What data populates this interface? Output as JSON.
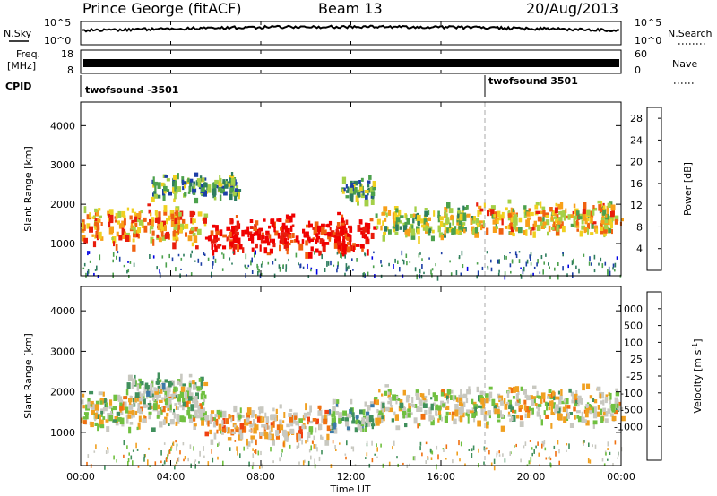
{
  "header": {
    "station": "Prince George (fitACF)",
    "beam": "Beam 13",
    "date": "20/Aug/2013"
  },
  "top_panels": {
    "nsky_label": "N.Sky",
    "nsky_ticks": [
      "10^5",
      "10^0"
    ],
    "nsearch_label": "N.Search",
    "nsearch_ticks": [
      "10^5",
      "10^0"
    ],
    "freq_label": "Freq.",
    "freq_unit": "[MHz]",
    "freq_ticks": [
      "18",
      "8"
    ],
    "nave_label": "Nave",
    "nave_ticks": [
      "60",
      "0"
    ],
    "cpid_label": "CPID",
    "cpid_segments": [
      {
        "label": "twofsound -3501",
        "start_hour": 0
      },
      {
        "label": "twofsound 3501",
        "start_hour": 18
      }
    ]
  },
  "chart_data": [
    {
      "type": "heatmap",
      "title": "",
      "xlabel": "Time UT",
      "ylabel": "Slant Range [km]",
      "xlim": [
        0,
        24
      ],
      "ylim": [
        180,
        4600
      ],
      "x_ticks": [
        "00:00",
        "04:00",
        "08:00",
        "12:00",
        "16:00",
        "20:00",
        "00:00"
      ],
      "y_ticks": [
        1000,
        2000,
        3000,
        4000
      ],
      "colorbar": {
        "label": "Power [dB]",
        "range": [
          0,
          30
        ],
        "ticks": [
          4,
          8,
          12,
          16,
          20,
          24,
          28
        ],
        "colors": [
          "#0000e6",
          "#1c3ea6",
          "#2e7d5e",
          "#4ca14c",
          "#a4d048",
          "#f0d020",
          "#f8a018",
          "#f06010",
          "#e81c0c",
          "#f00000"
        ]
      },
      "bands": [
        {
          "t0": 0.0,
          "t1": 5.5,
          "r_center": 1500,
          "r_width": 700,
          "level": 20
        },
        {
          "t0": 5.5,
          "t1": 13.0,
          "r_center": 1250,
          "r_width": 700,
          "level": 28
        },
        {
          "t0": 13.0,
          "t1": 17.5,
          "r_center": 1600,
          "r_width": 600,
          "level": 14
        },
        {
          "t0": 17.5,
          "t1": 24.0,
          "r_center": 1650,
          "r_width": 600,
          "level": 18
        },
        {
          "t0": 3.0,
          "t1": 7.0,
          "r_center": 2500,
          "r_width": 500,
          "level": 10
        },
        {
          "t0": 11.5,
          "t1": 13.0,
          "r_center": 2400,
          "r_width": 500,
          "level": 10
        }
      ]
    },
    {
      "type": "heatmap",
      "title": "",
      "xlabel": "Time UT",
      "ylabel": "Slant Range [km]",
      "xlim": [
        0,
        24
      ],
      "ylim": [
        180,
        4600
      ],
      "x_ticks": [
        "00:00",
        "04:00",
        "08:00",
        "12:00",
        "16:00",
        "20:00",
        "00:00"
      ],
      "y_ticks": [
        1000,
        2000,
        3000,
        4000
      ],
      "colorbar": {
        "label": "Velocity [m s^-1]",
        "range": [
          -1000,
          1000
        ],
        "ticks": [
          "1000",
          "500",
          "100",
          "25",
          "-25",
          "-100",
          "-500",
          "-1000"
        ],
        "colors": [
          "#2040c0",
          "#3c7aa8",
          "#40905c",
          "#70c040",
          "#c8c8c0",
          "#c8c8c0",
          "#f0a020",
          "#f07010",
          "#f04010",
          "#f00000"
        ]
      },
      "bands": [
        {
          "t0": 0.0,
          "t1": 5.5,
          "r_center": 1600,
          "r_width": 700,
          "level": 0
        },
        {
          "t0": 5.5,
          "t1": 11.0,
          "r_center": 1250,
          "r_width": 700,
          "level": 200
        },
        {
          "t0": 11.0,
          "t1": 13.0,
          "r_center": 1400,
          "r_width": 600,
          "level": -300
        },
        {
          "t0": 13.0,
          "t1": 24.0,
          "r_center": 1700,
          "r_width": 700,
          "level": 0
        },
        {
          "t0": 2.0,
          "t1": 5.5,
          "r_center": 2100,
          "r_width": 500,
          "level": -200
        }
      ]
    }
  ]
}
